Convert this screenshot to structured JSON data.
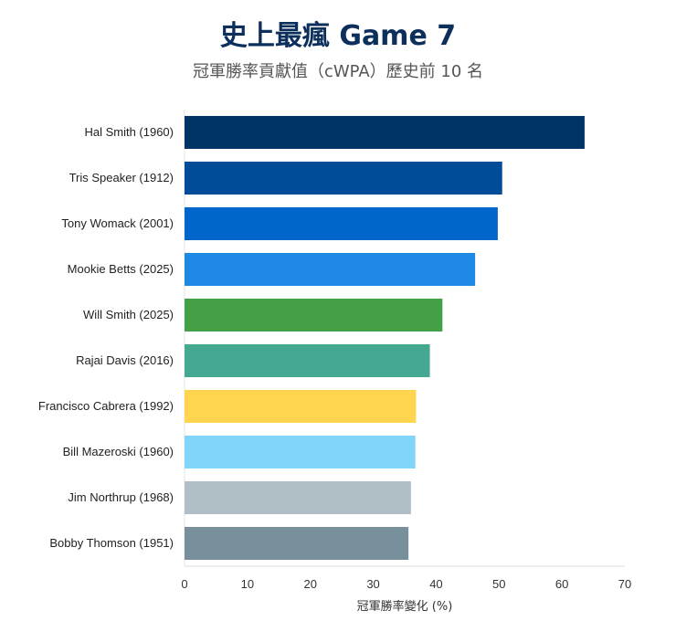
{
  "chart_data": {
    "type": "bar",
    "orientation": "horizontal",
    "title": "史上最瘋 Game 7",
    "subtitle": "冠軍勝率貢獻值（cWPA）歷史前 10 名",
    "xlabel": "冠軍勝率變化 (%)",
    "ylabel": "",
    "xlim": [
      0,
      70
    ],
    "xticks": [
      0,
      10,
      20,
      30,
      40,
      50,
      60,
      70
    ],
    "grid": false,
    "categories": [
      "Hal Smith (1960)",
      "Tris Speaker (1912)",
      "Tony Womack (2001)",
      "Mookie Betts (2025)",
      "Will Smith (2025)",
      "Rajai Davis (2016)",
      "Francisco Cabrera (1992)",
      "Bill Mazeroski (1960)",
      "Jim Northrup (1968)",
      "Bobby Thomson (1951)"
    ],
    "values": [
      63.6,
      50.5,
      49.8,
      46.2,
      41.0,
      39.0,
      36.8,
      36.7,
      36.0,
      35.6
    ],
    "colors": [
      "#003366",
      "#004c99",
      "#0066cc",
      "#1e88e5",
      "#43a047",
      "#45a891",
      "#ffd54f",
      "#81d4fa",
      "#b0bec5",
      "#78909c"
    ]
  }
}
